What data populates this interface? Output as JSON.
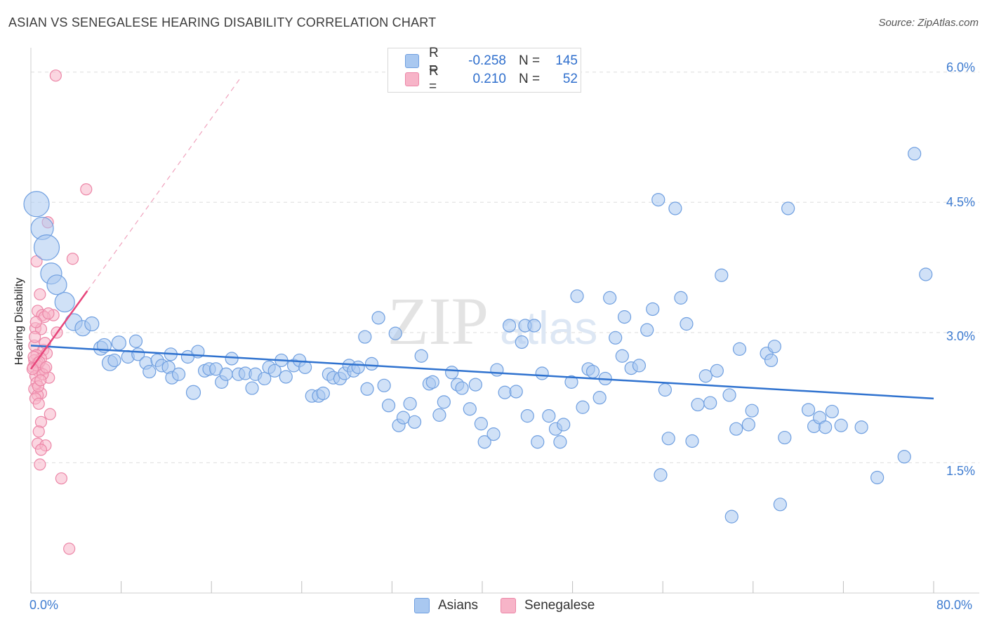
{
  "title": "ASIAN VS SENEGALESE HEARING DISABILITY CORRELATION CHART",
  "source": "Source: ZipAtlas.com",
  "watermark": {
    "zip": "ZIP",
    "atlas": "atlas"
  },
  "legend": {
    "rows": [
      {
        "r_label": "R =",
        "r_value": "-0.258",
        "n_label": "N =",
        "n_value": "145"
      },
      {
        "r_label": "R =",
        "r_value": "0.210",
        "n_label": "N =",
        "n_value": "52"
      }
    ]
  },
  "bottom_legend": [
    "Asians",
    "Senegalese"
  ],
  "colors": {
    "asian_fill": "#a9c8f0",
    "asian_stroke": "#6f9fe0",
    "asian_line": "#2f72cf",
    "seneg_fill": "#f7b4c8",
    "seneg_stroke": "#ec86a7",
    "seneg_line": "#e7457b",
    "tick_text": "#3d7bd0",
    "grid": "#dedede"
  },
  "chart_data": {
    "type": "scatter",
    "title": "ASIAN VS SENEGALESE HEARING DISABILITY CORRELATION CHART",
    "xlabel": "",
    "ylabel": "Hearing Disability",
    "xlim": [
      0,
      80
    ],
    "ylim": [
      0,
      6.2
    ],
    "x_tick_labels": [
      "0.0%",
      "80.0%"
    ],
    "y_ticks": [
      1.5,
      3.0,
      4.5,
      6.0
    ],
    "y_tick_labels": [
      "1.5%",
      "3.0%",
      "4.5%",
      "6.0%"
    ],
    "grid": true,
    "series": [
      {
        "name": "Asians",
        "r": -0.258,
        "n": 145,
        "trend": {
          "x": [
            0,
            80
          ],
          "y": [
            2.85,
            2.24
          ]
        },
        "points": [
          [
            0.5,
            4.48,
            18
          ],
          [
            1.0,
            4.2,
            16
          ],
          [
            1.4,
            3.98,
            18
          ],
          [
            1.8,
            3.68,
            15
          ],
          [
            2.3,
            3.55,
            14
          ],
          [
            3.0,
            3.35,
            14
          ],
          [
            3.8,
            3.12,
            12
          ],
          [
            4.6,
            3.05,
            11
          ],
          [
            5.4,
            3.1,
            10
          ],
          [
            6.2,
            2.82,
            10
          ],
          [
            7.0,
            2.65,
            11
          ],
          [
            7.8,
            2.88,
            10
          ],
          [
            6.5,
            2.85,
            10
          ],
          [
            7.4,
            2.68,
            9
          ],
          [
            8.6,
            2.72,
            9
          ],
          [
            9.5,
            2.75,
            9
          ],
          [
            9.3,
            2.9,
            9
          ],
          [
            10.2,
            2.65,
            9
          ],
          [
            10.5,
            2.55,
            9
          ],
          [
            11.2,
            2.68,
            9
          ],
          [
            11.6,
            2.62,
            9
          ],
          [
            12.2,
            2.6,
            9
          ],
          [
            12.5,
            2.48,
            9
          ],
          [
            12.4,
            2.75,
            9
          ],
          [
            13.1,
            2.52,
            9
          ],
          [
            13.9,
            2.72,
            9
          ],
          [
            14.4,
            2.31,
            10
          ],
          [
            14.8,
            2.78,
            9
          ],
          [
            15.4,
            2.56,
            9
          ],
          [
            15.8,
            2.58,
            9
          ],
          [
            16.4,
            2.58,
            9
          ],
          [
            16.9,
            2.43,
            9
          ],
          [
            17.3,
            2.52,
            9
          ],
          [
            17.8,
            2.7,
            9
          ],
          [
            18.4,
            2.52,
            9
          ],
          [
            19.0,
            2.53,
            9
          ],
          [
            19.6,
            2.36,
            9
          ],
          [
            19.9,
            2.52,
            9
          ],
          [
            20.7,
            2.47,
            9
          ],
          [
            21.1,
            2.6,
            9
          ],
          [
            21.6,
            2.56,
            9
          ],
          [
            22.2,
            2.68,
            9
          ],
          [
            22.6,
            2.49,
            9
          ],
          [
            23.3,
            2.62,
            9
          ],
          [
            23.8,
            2.68,
            9
          ],
          [
            24.3,
            2.6,
            9
          ],
          [
            24.9,
            2.27,
            9
          ],
          [
            25.5,
            2.27,
            9
          ],
          [
            25.9,
            2.3,
            9
          ],
          [
            26.4,
            2.52,
            9
          ],
          [
            26.8,
            2.48,
            9
          ],
          [
            27.4,
            2.47,
            9
          ],
          [
            27.8,
            2.53,
            9
          ],
          [
            28.2,
            2.62,
            9
          ],
          [
            28.6,
            2.56,
            9
          ],
          [
            29.0,
            2.6,
            9
          ],
          [
            29.8,
            2.35,
            9
          ],
          [
            30.2,
            2.64,
            9
          ],
          [
            30.8,
            3.17,
            9
          ],
          [
            31.3,
            2.39,
            9
          ],
          [
            31.7,
            2.16,
            9
          ],
          [
            32.3,
            2.99,
            9
          ],
          [
            32.6,
            1.93,
            9
          ],
          [
            33.0,
            2.02,
            9
          ],
          [
            33.6,
            2.18,
            9
          ],
          [
            34.0,
            1.97,
            9
          ],
          [
            34.6,
            2.73,
            9
          ],
          [
            35.3,
            2.41,
            9
          ],
          [
            35.6,
            2.43,
            9
          ],
          [
            36.2,
            2.05,
            9
          ],
          [
            36.6,
            2.2,
            9
          ],
          [
            37.3,
            2.54,
            9
          ],
          [
            37.8,
            2.4,
            9
          ],
          [
            38.2,
            2.36,
            9
          ],
          [
            38.9,
            2.12,
            9
          ],
          [
            39.4,
            2.4,
            9
          ],
          [
            39.9,
            1.95,
            9
          ],
          [
            40.2,
            1.74,
            9
          ],
          [
            41.0,
            1.83,
            9
          ],
          [
            41.3,
            2.57,
            9
          ],
          [
            42.0,
            2.31,
            9
          ],
          [
            42.4,
            3.08,
            9
          ],
          [
            43.0,
            2.32,
            9
          ],
          [
            43.5,
            2.89,
            9
          ],
          [
            43.8,
            3.08,
            9
          ],
          [
            44.0,
            2.04,
            9
          ],
          [
            44.9,
            1.74,
            9
          ],
          [
            45.3,
            2.53,
            9
          ],
          [
            45.9,
            2.04,
            9
          ],
          [
            46.5,
            1.89,
            9
          ],
          [
            46.9,
            1.74,
            9
          ],
          [
            47.2,
            1.94,
            9
          ],
          [
            47.9,
            2.43,
            9
          ],
          [
            48.4,
            3.42,
            9
          ],
          [
            48.9,
            2.14,
            9
          ],
          [
            49.4,
            2.58,
            9
          ],
          [
            49.8,
            2.55,
            9
          ],
          [
            50.4,
            2.25,
            9
          ],
          [
            50.9,
            2.47,
            9
          ],
          [
            51.3,
            3.4,
            9
          ],
          [
            51.8,
            2.94,
            9
          ],
          [
            52.4,
            2.73,
            9
          ],
          [
            52.6,
            3.18,
            9
          ],
          [
            53.2,
            2.59,
            9
          ],
          [
            53.9,
            2.62,
            9
          ],
          [
            54.6,
            3.03,
            9
          ],
          [
            55.1,
            3.27,
            9
          ],
          [
            55.6,
            4.53,
            9
          ],
          [
            56.2,
            2.34,
            9
          ],
          [
            56.5,
            1.78,
            9
          ],
          [
            57.1,
            4.43,
            9
          ],
          [
            57.6,
            3.4,
            9
          ],
          [
            58.1,
            3.1,
            9
          ],
          [
            58.6,
            1.75,
            9
          ],
          [
            59.1,
            2.17,
            9
          ],
          [
            59.8,
            2.5,
            9
          ],
          [
            60.2,
            2.19,
            9
          ],
          [
            60.8,
            2.56,
            9
          ],
          [
            61.2,
            3.66,
            9
          ],
          [
            61.9,
            2.28,
            9
          ],
          [
            62.1,
            0.88,
            9
          ],
          [
            62.5,
            1.89,
            9
          ],
          [
            62.8,
            2.81,
            9
          ],
          [
            63.6,
            1.94,
            9
          ],
          [
            63.9,
            2.1,
            9
          ],
          [
            65.2,
            2.76,
            9
          ],
          [
            65.6,
            2.68,
            9
          ],
          [
            65.9,
            2.84,
            9
          ],
          [
            66.4,
            1.02,
            9
          ],
          [
            66.8,
            1.79,
            9
          ],
          [
            67.1,
            4.43,
            9
          ],
          [
            68.9,
            2.11,
            9
          ],
          [
            69.4,
            1.92,
            9
          ],
          [
            69.9,
            2.02,
            9
          ],
          [
            70.4,
            1.91,
            9
          ],
          [
            71.0,
            2.09,
            9
          ],
          [
            71.8,
            1.93,
            9
          ],
          [
            73.6,
            1.91,
            9
          ],
          [
            75.0,
            1.33,
            9
          ],
          [
            77.4,
            1.57,
            9
          ],
          [
            78.3,
            5.06,
            9
          ],
          [
            79.3,
            3.67,
            9
          ],
          [
            55.8,
            1.36,
            9
          ],
          [
            44.6,
            3.08,
            9
          ],
          [
            29.6,
            2.95,
            9
          ]
        ]
      },
      {
        "name": "Senegalese",
        "r": 0.21,
        "n": 52,
        "trend": {
          "x": [
            0,
            5
          ],
          "y": [
            2.58,
            3.48
          ]
        },
        "trend_extension": {
          "x": [
            5,
            18.5
          ],
          "y": [
            3.48,
            5.92
          ]
        },
        "points": [
          [
            2.2,
            5.96,
            8
          ],
          [
            4.9,
            4.65,
            8
          ],
          [
            1.5,
            4.27,
            8
          ],
          [
            3.7,
            3.85,
            8
          ],
          [
            0.5,
            3.82,
            8
          ],
          [
            0.8,
            3.44,
            8
          ],
          [
            0.6,
            3.25,
            8
          ],
          [
            1.0,
            3.2,
            8
          ],
          [
            2.0,
            3.2,
            8
          ],
          [
            0.4,
            3.05,
            8
          ],
          [
            0.9,
            3.04,
            8
          ],
          [
            2.3,
            3.0,
            8
          ],
          [
            0.3,
            2.85,
            8
          ],
          [
            1.1,
            2.8,
            8
          ],
          [
            1.4,
            2.76,
            8
          ],
          [
            0.5,
            2.74,
            8
          ],
          [
            0.9,
            2.7,
            8
          ],
          [
            0.3,
            2.68,
            8
          ],
          [
            0.6,
            2.65,
            8
          ],
          [
            0.2,
            2.6,
            8
          ],
          [
            1.2,
            2.58,
            8
          ],
          [
            0.7,
            2.55,
            8
          ],
          [
            0.4,
            2.5,
            8
          ],
          [
            1.6,
            2.48,
            8
          ],
          [
            0.5,
            2.42,
            8
          ],
          [
            0.3,
            2.35,
            8
          ],
          [
            0.9,
            2.3,
            8
          ],
          [
            0.6,
            2.28,
            8
          ],
          [
            0.4,
            2.24,
            8
          ],
          [
            0.7,
            2.18,
            8
          ],
          [
            1.7,
            2.06,
            8
          ],
          [
            0.9,
            1.97,
            8
          ],
          [
            0.7,
            1.86,
            8
          ],
          [
            0.6,
            1.72,
            8
          ],
          [
            1.3,
            1.7,
            8
          ],
          [
            0.9,
            1.65,
            8
          ],
          [
            0.8,
            1.48,
            8
          ],
          [
            2.7,
            1.32,
            8
          ],
          [
            3.4,
            0.51,
            8
          ],
          [
            1.2,
            3.18,
            8
          ],
          [
            0.35,
            2.95,
            8
          ],
          [
            0.55,
            2.62,
            8
          ],
          [
            1.05,
            2.52,
            8
          ],
          [
            0.25,
            2.72,
            8
          ],
          [
            0.75,
            2.66,
            8
          ],
          [
            1.35,
            2.6,
            8
          ],
          [
            0.45,
            3.12,
            8
          ],
          [
            1.25,
            2.88,
            8
          ],
          [
            0.65,
            2.38,
            8
          ],
          [
            0.85,
            2.45,
            8
          ],
          [
            0.15,
            2.58,
            8
          ],
          [
            1.55,
            3.22,
            8
          ]
        ]
      }
    ]
  }
}
